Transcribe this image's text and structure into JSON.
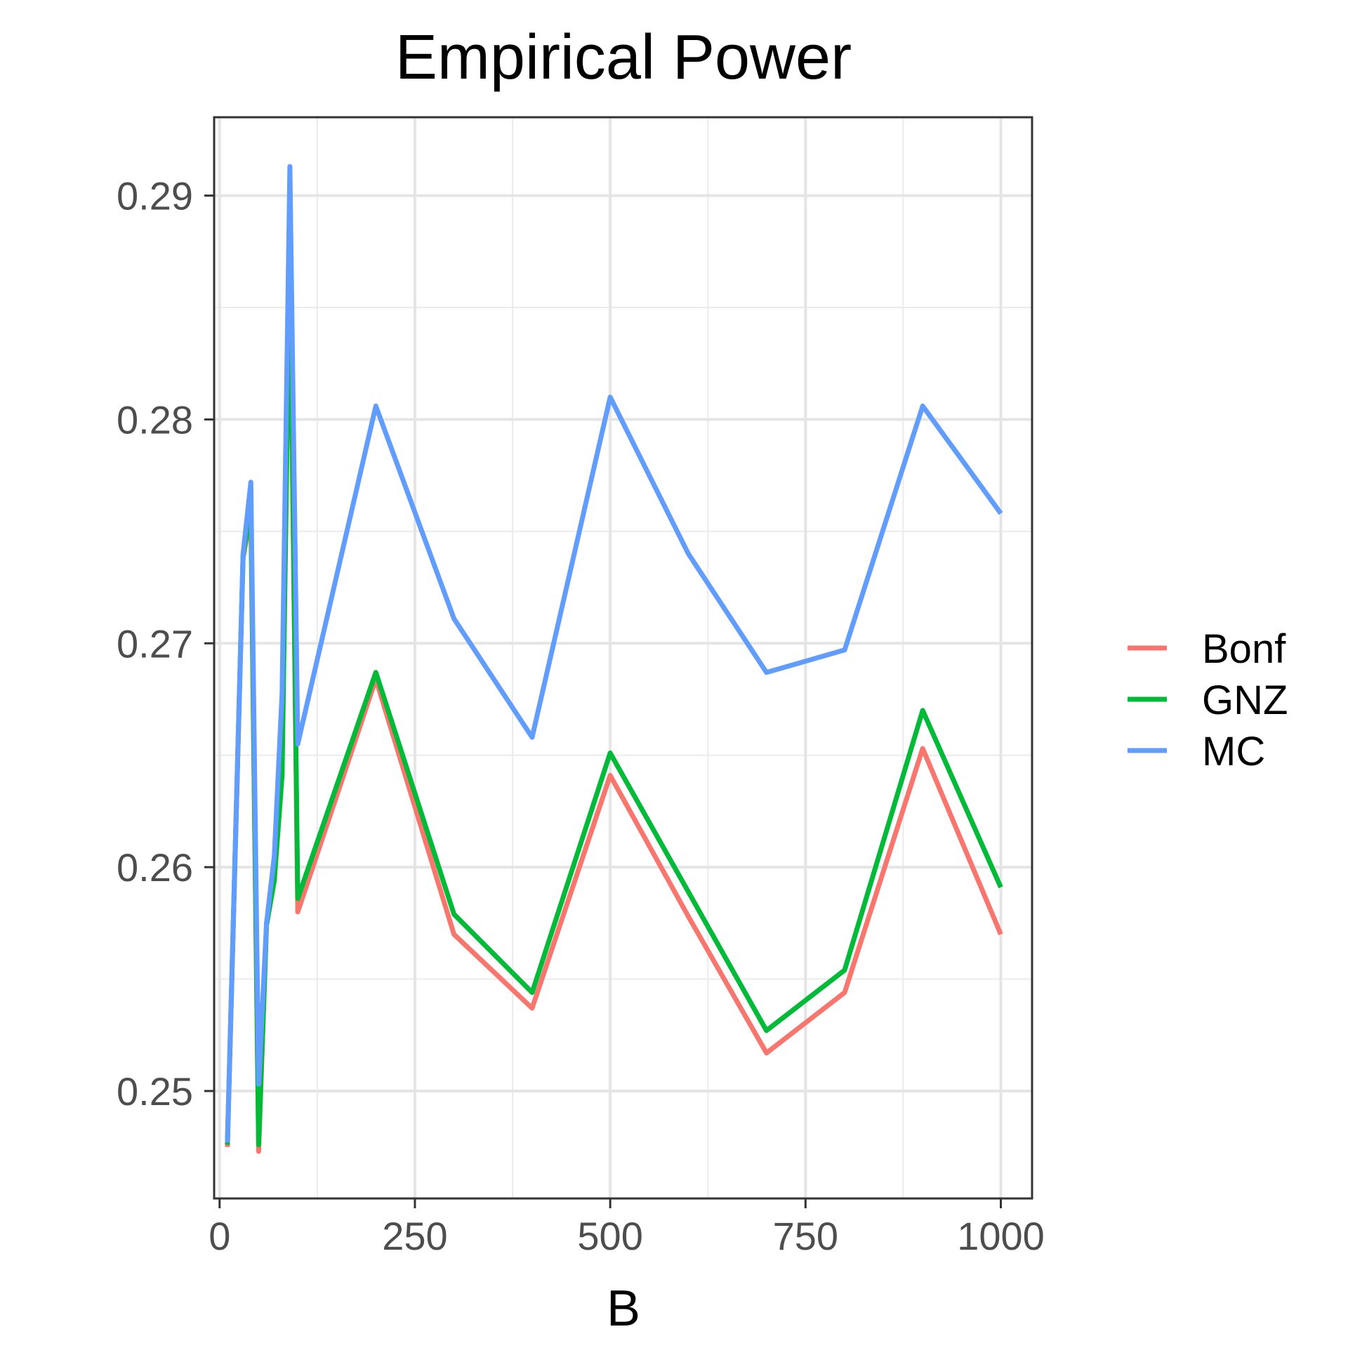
{
  "chart_data": {
    "type": "line",
    "title": "Empirical Power",
    "xlabel": "B",
    "ylabel": "",
    "xlim": [
      -7,
      1040
    ],
    "ylim": [
      0.2452,
      0.2935
    ],
    "x_ticks": [
      0,
      250,
      500,
      750,
      1000
    ],
    "x_tick_labels": [
      "0",
      "250",
      "500",
      "750",
      "1000"
    ],
    "y_ticks": [
      0.25,
      0.26,
      0.27,
      0.28,
      0.29
    ],
    "y_tick_labels": [
      "0.25",
      "0.26",
      "0.27",
      "0.28",
      "0.29"
    ],
    "grid": true,
    "legend_position": "right",
    "x": [
      10,
      30,
      40,
      50,
      60,
      70,
      80,
      90,
      100,
      200,
      300,
      400,
      500,
      600,
      700,
      800,
      900,
      1000
    ],
    "series": [
      {
        "name": "Bonf",
        "color": "#F8766D",
        "values": [
          0.2475,
          0.2738,
          0.2758,
          0.2473,
          0.2575,
          0.2594,
          0.2651,
          0.2876,
          0.258,
          0.2684,
          0.257,
          0.2537,
          0.2641,
          0.2578,
          0.2517,
          0.2544,
          0.2653,
          0.257
        ]
      },
      {
        "name": "GNZ",
        "color": "#00BA38",
        "values": [
          0.2476,
          0.2739,
          0.2761,
          0.2476,
          0.2574,
          0.2594,
          0.2641,
          0.2876,
          0.2586,
          0.2687,
          0.2579,
          0.2544,
          0.2651,
          0.2589,
          0.2527,
          0.2554,
          0.267,
          0.2591
        ]
      },
      {
        "name": "MC",
        "color": "#619CFF",
        "values": [
          0.2477,
          0.274,
          0.2772,
          0.2503,
          0.2575,
          0.2605,
          0.2678,
          0.2913,
          0.2655,
          0.2806,
          0.2711,
          0.2658,
          0.281,
          0.274,
          0.2687,
          0.2697,
          0.2806,
          0.2758
        ]
      }
    ]
  }
}
